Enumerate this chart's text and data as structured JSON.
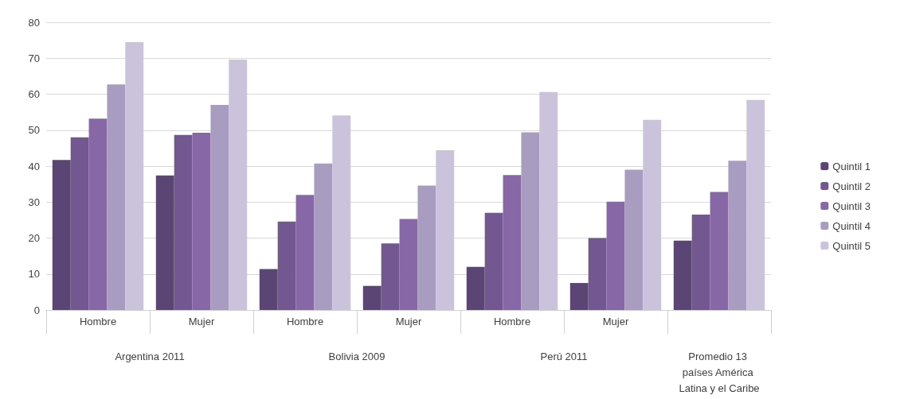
{
  "chart_data": {
    "type": "bar",
    "categories": [
      "Hombre",
      "Mujer",
      "Hombre",
      "Mujer",
      "Hombre",
      "Mujer",
      null
    ],
    "series": [
      {
        "name": "Quintil 1",
        "color": "#5a4574",
        "values": [
          41.7,
          37.4,
          11.4,
          6.7,
          12,
          7.5,
          19.3
        ]
      },
      {
        "name": "Quintil 2",
        "color": "#735790",
        "values": [
          48,
          48.7,
          24.6,
          18.5,
          27,
          20,
          26.5
        ]
      },
      {
        "name": "Quintil 3",
        "color": "#8767a6",
        "values": [
          53.2,
          49.3,
          32,
          25.3,
          37.5,
          30.1,
          32.8
        ]
      },
      {
        "name": "Quintil 4",
        "color": "#a99cc1",
        "values": [
          62.7,
          57,
          40.7,
          34.6,
          49.4,
          39,
          41.5
        ]
      },
      {
        "name": "Quintil 5",
        "color": "#cbc3dc",
        "values": [
          74.5,
          69.6,
          54.1,
          44.4,
          60.6,
          52.9,
          58.4
        ]
      }
    ],
    "ylim": [
      0,
      80
    ],
    "yticks": [
      0,
      10,
      20,
      30,
      40,
      50,
      60,
      70,
      80
    ],
    "grid": "y",
    "legend": "right",
    "annotations": [
      "Argentina 2011",
      "Bolivia 2009",
      "Perú 2011",
      "Promedio 13 países América Latina y el Caribe"
    ]
  }
}
